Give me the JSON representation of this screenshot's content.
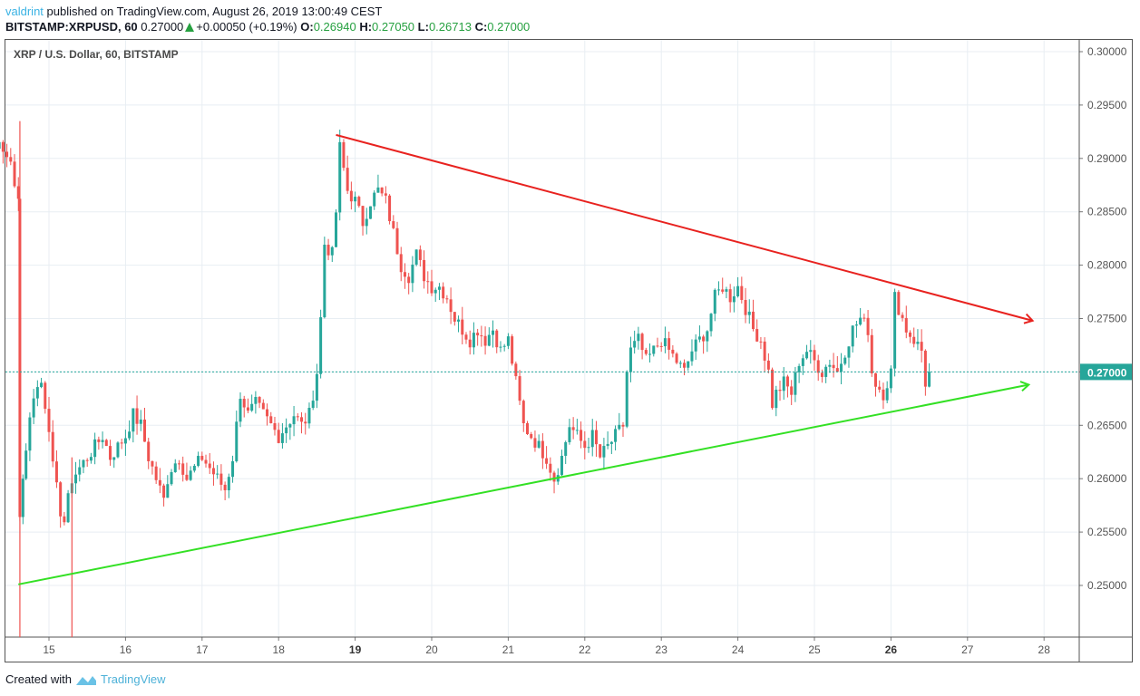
{
  "header": {
    "author": "valdrint",
    "published_text": "published on TradingView.com, August 26, 2019 13:00:49 CEST",
    "symbol": "BITSTAMP:XRPUSD, 60",
    "last": "0.27000",
    "change": "+0.00050 (+0.19%)",
    "open_label": "O:",
    "open": "0.26940",
    "high_label": "H:",
    "high": "0.27050",
    "low_label": "L:",
    "low": "0.26713",
    "close_label": "C:",
    "close": "0.27000"
  },
  "legend": {
    "title": "XRP / U.S. Dollar, 60, BITSTAMP"
  },
  "footer": {
    "created_with": "Created with",
    "brand": "TradingView"
  },
  "colors": {
    "up": "#26a69a",
    "down": "#ef5350",
    "resistance": "#e8221f",
    "support": "#33e024",
    "grid": "#e8eef3",
    "price_line": "#26a69a",
    "axis_text": "#555555"
  },
  "chart_data": {
    "type": "candlestick",
    "title": "XRP / U.S. Dollar, 60, BITSTAMP",
    "xlabel": "",
    "ylabel": "",
    "x_ticks": [
      "15",
      "16",
      "17",
      "18",
      "19",
      "20",
      "21",
      "22",
      "23",
      "24",
      "25",
      "26",
      "27",
      "28"
    ],
    "bold_ticks": [
      "19",
      "26"
    ],
    "y_ticks": [
      "0.30000",
      "0.29500",
      "0.29000",
      "0.28500",
      "0.28000",
      "0.27500",
      "0.27000",
      "0.26500",
      "0.26000",
      "0.25500",
      "0.25000"
    ],
    "ylim": [
      0.2455,
      0.3012
    ],
    "current_price": "0.27000",
    "grid": true,
    "close_path": [
      [
        14.0,
        0.2935
      ],
      [
        14.1,
        0.293
      ],
      [
        14.2,
        0.2925
      ],
      [
        14.3,
        0.2915
      ],
      [
        14.4,
        0.2905
      ],
      [
        14.5,
        0.29
      ],
      [
        14.55,
        0.287
      ],
      [
        14.6,
        0.286
      ],
      [
        14.62,
        0.257
      ],
      [
        14.7,
        0.263
      ],
      [
        14.8,
        0.268
      ],
      [
        14.9,
        0.269
      ],
      [
        15.0,
        0.265
      ],
      [
        15.05,
        0.261
      ],
      [
        15.1,
        0.259
      ],
      [
        15.15,
        0.257
      ],
      [
        15.2,
        0.256
      ],
      [
        15.25,
        0.258
      ],
      [
        15.3,
        0.26
      ],
      [
        15.4,
        0.261
      ],
      [
        15.5,
        0.262
      ],
      [
        15.6,
        0.263
      ],
      [
        15.7,
        0.264
      ],
      [
        15.8,
        0.262
      ],
      [
        15.9,
        0.263
      ],
      [
        16.0,
        0.264
      ],
      [
        16.1,
        0.266
      ],
      [
        16.2,
        0.265
      ],
      [
        16.3,
        0.262
      ],
      [
        16.4,
        0.26
      ],
      [
        16.5,
        0.258
      ],
      [
        16.55,
        0.26
      ],
      [
        16.6,
        0.261
      ],
      [
        16.7,
        0.262
      ],
      [
        16.8,
        0.26
      ],
      [
        16.9,
        0.261
      ],
      [
        17.0,
        0.262
      ],
      [
        17.1,
        0.261
      ],
      [
        17.2,
        0.26
      ],
      [
        17.3,
        0.259
      ],
      [
        17.4,
        0.262
      ],
      [
        17.5,
        0.268
      ],
      [
        17.6,
        0.266
      ],
      [
        17.7,
        0.267
      ],
      [
        17.8,
        0.266
      ],
      [
        17.9,
        0.265
      ],
      [
        18.0,
        0.264
      ],
      [
        18.1,
        0.265
      ],
      [
        18.2,
        0.266
      ],
      [
        18.3,
        0.265
      ],
      [
        18.4,
        0.266
      ],
      [
        18.5,
        0.27
      ],
      [
        18.55,
        0.275
      ],
      [
        18.6,
        0.282
      ],
      [
        18.7,
        0.281
      ],
      [
        18.75,
        0.285
      ],
      [
        18.8,
        0.291
      ],
      [
        18.85,
        0.289
      ],
      [
        18.9,
        0.287
      ],
      [
        19.0,
        0.286
      ],
      [
        19.1,
        0.284
      ],
      [
        19.2,
        0.286
      ],
      [
        19.3,
        0.287
      ],
      [
        19.4,
        0.286
      ],
      [
        19.5,
        0.283
      ],
      [
        19.6,
        0.28
      ],
      [
        19.7,
        0.279
      ],
      [
        19.8,
        0.281
      ],
      [
        19.9,
        0.279
      ],
      [
        20.0,
        0.278
      ],
      [
        20.1,
        0.278
      ],
      [
        20.2,
        0.277
      ],
      [
        20.3,
        0.275
      ],
      [
        20.4,
        0.274
      ],
      [
        20.5,
        0.273
      ],
      [
        20.6,
        0.274
      ],
      [
        20.7,
        0.273
      ],
      [
        20.8,
        0.274
      ],
      [
        20.9,
        0.272
      ],
      [
        21.0,
        0.273
      ],
      [
        21.1,
        0.269
      ],
      [
        21.2,
        0.265
      ],
      [
        21.3,
        0.264
      ],
      [
        21.4,
        0.263
      ],
      [
        21.5,
        0.262
      ],
      [
        21.6,
        0.26
      ],
      [
        21.7,
        0.262
      ],
      [
        21.8,
        0.265
      ],
      [
        21.9,
        0.264
      ],
      [
        22.0,
        0.263
      ],
      [
        22.1,
        0.264
      ],
      [
        22.2,
        0.262
      ],
      [
        22.3,
        0.263
      ],
      [
        22.4,
        0.264
      ],
      [
        22.5,
        0.265
      ],
      [
        22.55,
        0.27
      ],
      [
        22.6,
        0.272
      ],
      [
        22.7,
        0.273
      ],
      [
        22.8,
        0.271
      ],
      [
        22.9,
        0.272
      ],
      [
        23.0,
        0.273
      ],
      [
        23.1,
        0.272
      ],
      [
        23.2,
        0.271
      ],
      [
        23.3,
        0.27
      ],
      [
        23.4,
        0.272
      ],
      [
        23.5,
        0.273
      ],
      [
        23.6,
        0.274
      ],
      [
        23.7,
        0.277
      ],
      [
        23.8,
        0.278
      ],
      [
        23.9,
        0.277
      ],
      [
        24.0,
        0.278
      ],
      [
        24.1,
        0.276
      ],
      [
        24.2,
        0.274
      ],
      [
        24.3,
        0.273
      ],
      [
        24.4,
        0.27
      ],
      [
        24.45,
        0.267
      ],
      [
        24.5,
        0.268
      ],
      [
        24.6,
        0.269
      ],
      [
        24.7,
        0.268
      ],
      [
        24.8,
        0.271
      ],
      [
        24.9,
        0.272
      ],
      [
        25.0,
        0.271
      ],
      [
        25.1,
        0.27
      ],
      [
        25.2,
        0.271
      ],
      [
        25.3,
        0.27
      ],
      [
        25.4,
        0.272
      ],
      [
        25.5,
        0.274
      ],
      [
        25.6,
        0.275
      ],
      [
        25.7,
        0.274
      ],
      [
        25.75,
        0.27
      ],
      [
        25.8,
        0.269
      ],
      [
        25.9,
        0.268
      ],
      [
        26.0,
        0.27
      ],
      [
        26.05,
        0.277
      ],
      [
        26.1,
        0.276
      ],
      [
        26.2,
        0.274
      ],
      [
        26.3,
        0.273
      ],
      [
        26.4,
        0.272
      ],
      [
        26.45,
        0.269
      ],
      [
        26.5,
        0.27
      ]
    ],
    "resistance_line": {
      "from": [
        18.75,
        0.2922
      ],
      "to": [
        27.85,
        0.2748
      ],
      "color": "#e8221f"
    },
    "support_line": {
      "from": [
        14.6,
        0.2501
      ],
      "to": [
        27.8,
        0.2688
      ],
      "color": "#33e024"
    }
  }
}
